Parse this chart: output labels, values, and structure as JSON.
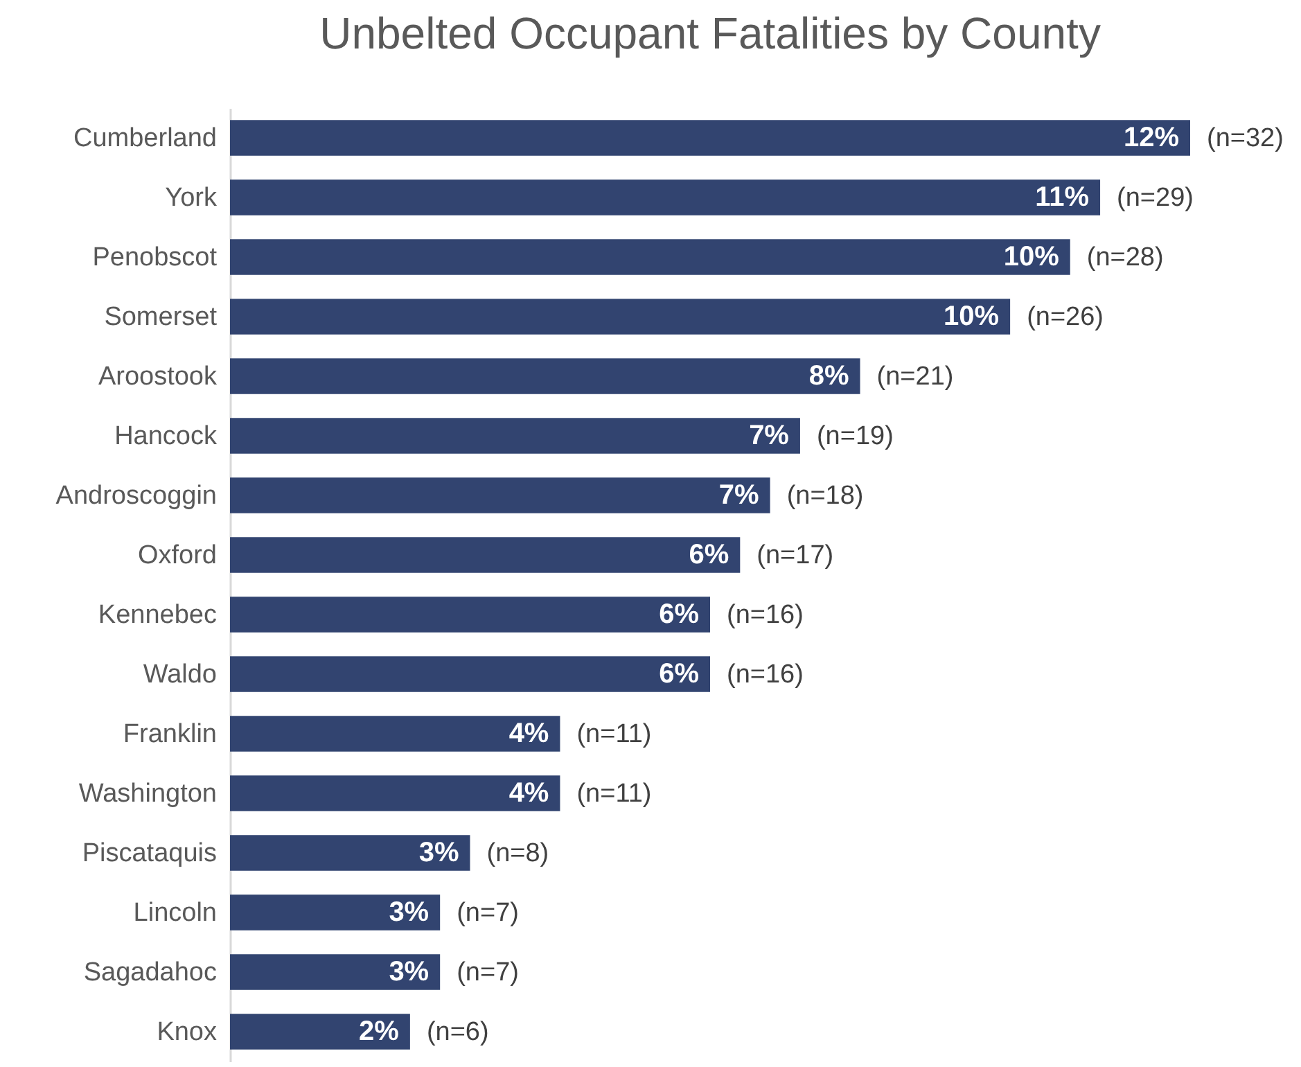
{
  "chart_data": {
    "type": "bar",
    "orientation": "horizontal",
    "title": "Unbelted Occupant Fatalities by County",
    "categories": [
      "Cumberland",
      "York",
      "Penobscot",
      "Somerset",
      "Aroostook",
      "Hancock",
      "Androscoggin",
      "Oxford",
      "Kennebec",
      "Waldo",
      "Franklin",
      "Washington",
      "Piscataquis",
      "Lincoln",
      "Sagadahoc",
      "Knox"
    ],
    "values": [
      32,
      29,
      28,
      26,
      21,
      19,
      18,
      17,
      16,
      16,
      11,
      11,
      8,
      7,
      7,
      6
    ],
    "color": "#324470",
    "value_labels": [
      "(n=32)",
      "(n=29)",
      "(n=28)",
      "(n=26)",
      "(n=21)",
      "(n=19)",
      "(n=18)",
      "(n=17)",
      "(n=16)",
      "(n=16)",
      "(n=11)",
      "(n=11)",
      "(n=8)",
      "(n=7)",
      "(n=7)",
      "(n=6)"
    ],
    "annotations": [
      {
        "text": "12%",
        "x": 32,
        "y": "Cumberland"
      },
      {
        "text": "11%",
        "x": 29,
        "y": "York"
      },
      {
        "text": "10%",
        "x": 28,
        "y": "Penobscot"
      },
      {
        "text": "10%",
        "x": 26,
        "y": "Somerset"
      },
      {
        "text": "8%",
        "x": 21,
        "y": "Aroostook"
      },
      {
        "text": "7%",
        "x": 19,
        "y": "Hancock"
      },
      {
        "text": "7%",
        "x": 18,
        "y": "Androscoggin"
      },
      {
        "text": "6%",
        "x": 17,
        "y": "Oxford"
      },
      {
        "text": "6%",
        "x": 16,
        "y": "Kennebec"
      },
      {
        "text": "6%",
        "x": 16,
        "y": "Waldo"
      },
      {
        "text": "4%",
        "x": 11,
        "y": "Franklin"
      },
      {
        "text": "4%",
        "x": 11,
        "y": "Washington"
      },
      {
        "text": "3%",
        "x": 8,
        "y": "Piscataquis"
      },
      {
        "text": "3%",
        "x": 7,
        "y": "Lincoln"
      },
      {
        "text": "3%",
        "x": 7,
        "y": "Sagadahoc"
      },
      {
        "text": "2%",
        "x": 6,
        "y": "Knox"
      }
    ]
  }
}
